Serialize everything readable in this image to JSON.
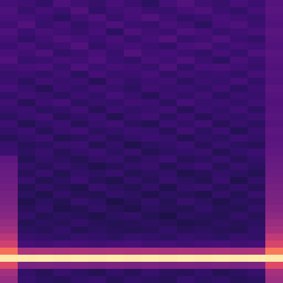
{
  "chart_data": {
    "type": "heatmap",
    "color": "magma",
    "tick_labels": false,
    "zlim": [
      0,
      100
    ],
    "z": [
      [
        22,
        21,
        18,
        24,
        21,
        19,
        23,
        20,
        17,
        22,
        25,
        21,
        19,
        23,
        20,
        26
      ],
      [
        24,
        19,
        22,
        20,
        25,
        18,
        21,
        23,
        20,
        19,
        22,
        24,
        20,
        18,
        22,
        27
      ],
      [
        23,
        22,
        20,
        17,
        21,
        24,
        19,
        22,
        25,
        21,
        18,
        20,
        23,
        21,
        19,
        26
      ],
      [
        21,
        25,
        19,
        22,
        18,
        21,
        24,
        20,
        19,
        23,
        21,
        17,
        22,
        24,
        20,
        25
      ],
      [
        24,
        20,
        23,
        21,
        19,
        22,
        17,
        24,
        21,
        20,
        24,
        22,
        19,
        21,
        23,
        27
      ],
      [
        22,
        18,
        21,
        24,
        22,
        20,
        23,
        19,
        22,
        25,
        19,
        21,
        24,
        20,
        18,
        26
      ],
      [
        20,
        23,
        19,
        21,
        25,
        18,
        21,
        22,
        20,
        18,
        23,
        24,
        20,
        22,
        21,
        25
      ],
      [
        23,
        21,
        24,
        18,
        20,
        23,
        19,
        25,
        21,
        22,
        20,
        18,
        22,
        19,
        24,
        27
      ],
      [
        25,
        19,
        20,
        22,
        21,
        24,
        20,
        18,
        23,
        21,
        24,
        20,
        17,
        23,
        20,
        26
      ],
      [
        21,
        22,
        23,
        19,
        24,
        20,
        22,
        21,
        19,
        24,
        18,
        22,
        23,
        21,
        19,
        25
      ],
      [
        19,
        20,
        18,
        21,
        17,
        22,
        19,
        20,
        22,
        18,
        21,
        19,
        20,
        18,
        22,
        26
      ],
      [
        20,
        17,
        21,
        19,
        20,
        16,
        21,
        18,
        20,
        21,
        17,
        20,
        19,
        22,
        18,
        25
      ],
      [
        22,
        19,
        16,
        20,
        18,
        21,
        19,
        17,
        21,
        19,
        20,
        18,
        21,
        17,
        20,
        27
      ],
      [
        18,
        21,
        19,
        17,
        20,
        18,
        22,
        19,
        16,
        20,
        18,
        21,
        17,
        20,
        19,
        26
      ],
      [
        21,
        16,
        20,
        22,
        17,
        19,
        18,
        21,
        20,
        17,
        22,
        19,
        20,
        18,
        21,
        25
      ],
      [
        19,
        20,
        17,
        18,
        21,
        16,
        20,
        18,
        19,
        21,
        16,
        20,
        18,
        21,
        17,
        26
      ],
      [
        17,
        19,
        21,
        16,
        18,
        20,
        15,
        19,
        21,
        17,
        20,
        16,
        19,
        18,
        20,
        27
      ],
      [
        20,
        15,
        18,
        20,
        16,
        19,
        21,
        17,
        15,
        20,
        18,
        21,
        16,
        19,
        17,
        26
      ],
      [
        18,
        20,
        16,
        19,
        21,
        17,
        18,
        20,
        19,
        16,
        21,
        17,
        20,
        15,
        19,
        28
      ],
      [
        16,
        18,
        20,
        15,
        17,
        19,
        16,
        18,
        20,
        19,
        15,
        18,
        17,
        20,
        18,
        27
      ],
      [
        19,
        16,
        17,
        19,
        20,
        15,
        18,
        14,
        17,
        18,
        20,
        16,
        19,
        17,
        16,
        28
      ],
      [
        20,
        17,
        19,
        16,
        18,
        20,
        17,
        19,
        15,
        17,
        18,
        19,
        15,
        18,
        20,
        29
      ],
      [
        28,
        15,
        18,
        17,
        15,
        18,
        19,
        16,
        18,
        20,
        16,
        17,
        19,
        16,
        18,
        30
      ],
      [
        30,
        18,
        16,
        19,
        17,
        14,
        16,
        18,
        19,
        15,
        18,
        20,
        16,
        19,
        17,
        31
      ],
      [
        31,
        16,
        19,
        15,
        18,
        17,
        19,
        15,
        17,
        18,
        14,
        16,
        18,
        17,
        15,
        32
      ],
      [
        32,
        19,
        15,
        17,
        20,
        16,
        14,
        18,
        16,
        19,
        17,
        15,
        19,
        14,
        18,
        33
      ],
      [
        33,
        15,
        18,
        16,
        14,
        19,
        17,
        15,
        18,
        14,
        18,
        19,
        16,
        18,
        16,
        34
      ],
      [
        34,
        17,
        14,
        18,
        16,
        15,
        18,
        17,
        14,
        17,
        16,
        14,
        18,
        15,
        19,
        35
      ],
      [
        35,
        14,
        17,
        15,
        19,
        17,
        13,
        16,
        18,
        15,
        19,
        17,
        14,
        17,
        16,
        36
      ],
      [
        37,
        16,
        18,
        14,
        15,
        18,
        16,
        14,
        17,
        16,
        15,
        18,
        16,
        15,
        18,
        38
      ],
      [
        39,
        18,
        15,
        17,
        16,
        14,
        17,
        18,
        15,
        13,
        17,
        16,
        15,
        18,
        16,
        40
      ],
      [
        42,
        15,
        17,
        16,
        18,
        16,
        15,
        16,
        17,
        16,
        14,
        15,
        17,
        16,
        17,
        43
      ],
      [
        45,
        17,
        16,
        18,
        15,
        17,
        16,
        15,
        16,
        18,
        16,
        17,
        16,
        15,
        18,
        46
      ],
      [
        50,
        19,
        18,
        17,
        19,
        18,
        17,
        19,
        18,
        17,
        19,
        18,
        17,
        19,
        18,
        52
      ],
      [
        56,
        22,
        21,
        23,
        22,
        21,
        22,
        23,
        21,
        22,
        21,
        22,
        23,
        21,
        22,
        58
      ],
      [
        70,
        47,
        48,
        47,
        48,
        47,
        48,
        47,
        48,
        47,
        48,
        47,
        48,
        47,
        48,
        72
      ],
      [
        95,
        95,
        96,
        95,
        96,
        95,
        96,
        95,
        96,
        95,
        96,
        95,
        96,
        95,
        96,
        95
      ],
      [
        60,
        35,
        36,
        35,
        36,
        35,
        36,
        35,
        36,
        35,
        36,
        35,
        36,
        35,
        36,
        60
      ],
      [
        45,
        18,
        16,
        19,
        17,
        15,
        18,
        16,
        19,
        17,
        16,
        18,
        15,
        17,
        19,
        46
      ],
      [
        42,
        19,
        17,
        16,
        18,
        19,
        16,
        18,
        17,
        16,
        19,
        17,
        18,
        16,
        17,
        44
      ]
    ]
  }
}
